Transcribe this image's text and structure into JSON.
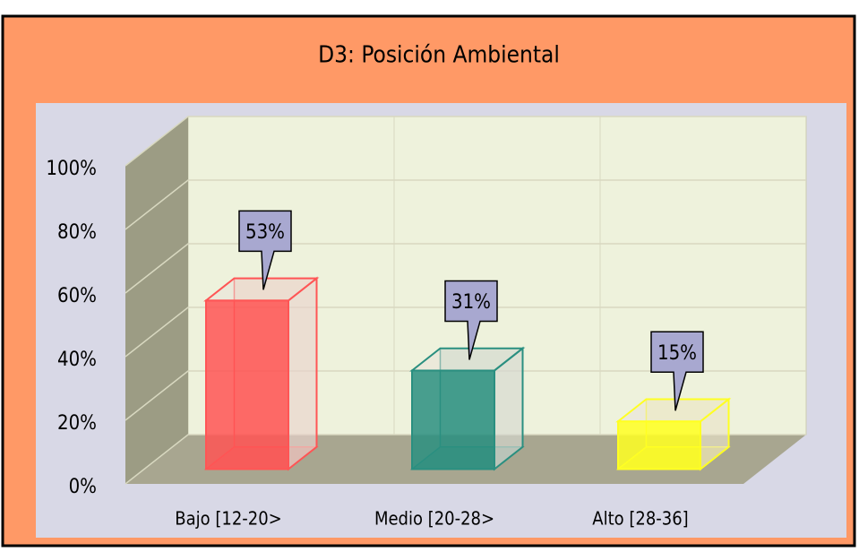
{
  "chart_data": {
    "type": "bar3d",
    "title": "D3: Posición Ambiental",
    "categories": [
      "Bajo [12-20>",
      "Medio [20-28>",
      "Alto [28-36]"
    ],
    "values": [
      53,
      31,
      15
    ],
    "value_labels": [
      "53%",
      "31%",
      "15%"
    ],
    "colors": [
      "#ff5555",
      "#2a8f80",
      "#ffff22"
    ],
    "ylim": [
      0,
      100
    ],
    "yticks": [
      {
        "value": 0,
        "label": "0%"
      },
      {
        "value": 20,
        "label": "20%"
      },
      {
        "value": 40,
        "label": "40%"
      },
      {
        "value": 60,
        "label": "60%"
      },
      {
        "value": 80,
        "label": "80%"
      },
      {
        "value": 100,
        "label": "100%"
      }
    ],
    "grid": true
  }
}
